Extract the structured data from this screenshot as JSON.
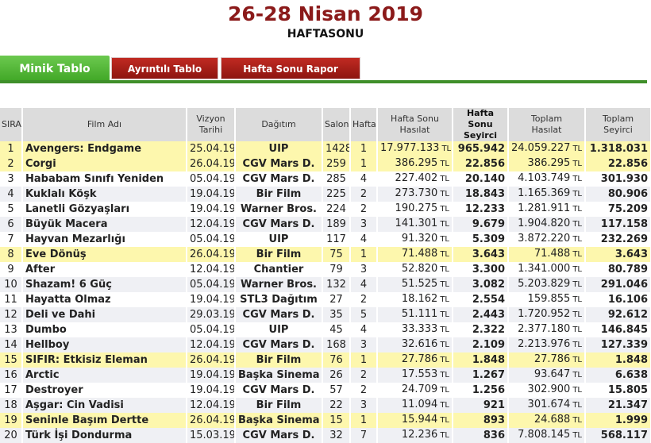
{
  "header": {
    "title": "26-28 Nisan 2019",
    "subtitle": "HAFTASONU"
  },
  "tabs": [
    {
      "label": "Minik Tablo",
      "active": true
    },
    {
      "label": "Ayrıntılı Tablo",
      "active": false
    },
    {
      "label": "Hafta Sonu Rapor",
      "active": false
    }
  ],
  "colors": {
    "title": "#8b1a1a",
    "tab_active": "#4fb535",
    "tab_inactive": "#a81d17",
    "tab_bar": "#3f8f2a",
    "link_text": "#1f2a8a",
    "new_release_row": "#fdf7ad",
    "alt_row": "#eff0f4",
    "header_bg": "#dcdcdc"
  },
  "currency_suffix": "TL",
  "table": {
    "columns": [
      {
        "line1": "SIRA",
        "line2": ""
      },
      {
        "line1": "Film Adı",
        "line2": ""
      },
      {
        "line1": "Vizyon",
        "line2": "Tarihi"
      },
      {
        "line1": "Dağıtım",
        "line2": ""
      },
      {
        "line1": "Salon",
        "line2": ""
      },
      {
        "line1": "Hafta",
        "line2": ""
      },
      {
        "line1": "Hafta Sonu",
        "line2": "Hasılat"
      },
      {
        "line1": "Hafta Sonu",
        "line2": "Seyirci"
      },
      {
        "line1": "Toplam",
        "line2": "Hasılat"
      },
      {
        "line1": "Toplam",
        "line2": "Seyirci"
      }
    ],
    "rows": [
      {
        "rank": "1",
        "film": "Avengers: Endgame",
        "release": "25.04.19",
        "distributor": "UIP",
        "screens": "1428",
        "week": "1",
        "weekend_gross": "17.977.133",
        "weekend_admissions": "965.942",
        "total_gross": "24.059.227",
        "total_admissions": "1.318.031",
        "new": true
      },
      {
        "rank": "2",
        "film": "Corgi",
        "release": "26.04.19",
        "distributor": "CGV Mars D.",
        "screens": "259",
        "week": "1",
        "weekend_gross": "386.295",
        "weekend_admissions": "22.856",
        "total_gross": "386.295",
        "total_admissions": "22.856",
        "new": true
      },
      {
        "rank": "3",
        "film": "Hababam Sınıfı Yeniden",
        "release": "05.04.19",
        "distributor": "CGV Mars D.",
        "screens": "285",
        "week": "4",
        "weekend_gross": "227.402",
        "weekend_admissions": "20.140",
        "total_gross": "4.103.749",
        "total_admissions": "301.930",
        "new": false
      },
      {
        "rank": "4",
        "film": "Kuklalı Köşk",
        "release": "19.04.19",
        "distributor": "Bir Film",
        "screens": "225",
        "week": "2",
        "weekend_gross": "273.730",
        "weekend_admissions": "18.843",
        "total_gross": "1.165.369",
        "total_admissions": "80.906",
        "new": false
      },
      {
        "rank": "5",
        "film": "Lanetli Gözyaşları",
        "release": "19.04.19",
        "distributor": "Warner Bros.",
        "screens": "224",
        "week": "2",
        "weekend_gross": "190.275",
        "weekend_admissions": "12.233",
        "total_gross": "1.281.911",
        "total_admissions": "75.209",
        "new": false
      },
      {
        "rank": "6",
        "film": "Büyük Macera",
        "release": "12.04.19",
        "distributor": "CGV Mars D.",
        "screens": "189",
        "week": "3",
        "weekend_gross": "141.301",
        "weekend_admissions": "9.679",
        "total_gross": "1.904.820",
        "total_admissions": "117.158",
        "new": false
      },
      {
        "rank": "7",
        "film": "Hayvan Mezarlığı",
        "release": "05.04.19",
        "distributor": "UIP",
        "screens": "117",
        "week": "4",
        "weekend_gross": "91.320",
        "weekend_admissions": "5.309",
        "total_gross": "3.872.220",
        "total_admissions": "232.269",
        "new": false
      },
      {
        "rank": "8",
        "film": "Eve Dönüş",
        "release": "26.04.19",
        "distributor": "Bir Film",
        "screens": "75",
        "week": "1",
        "weekend_gross": "71.488",
        "weekend_admissions": "3.643",
        "total_gross": "71.488",
        "total_admissions": "3.643",
        "new": true
      },
      {
        "rank": "9",
        "film": "After",
        "release": "12.04.19",
        "distributor": "Chantier",
        "screens": "79",
        "week": "3",
        "weekend_gross": "52.820",
        "weekend_admissions": "3.300",
        "total_gross": "1.341.000",
        "total_admissions": "80.789",
        "new": false
      },
      {
        "rank": "10",
        "film": "Shazam! 6 Güç",
        "release": "05.04.19",
        "distributor": "Warner Bros.",
        "screens": "132",
        "week": "4",
        "weekend_gross": "51.525",
        "weekend_admissions": "3.082",
        "total_gross": "5.203.829",
        "total_admissions": "291.046",
        "new": false
      },
      {
        "rank": "11",
        "film": "Hayatta Olmaz",
        "release": "19.04.19",
        "distributor": "STL3 Dağıtım",
        "screens": "27",
        "week": "2",
        "weekend_gross": "18.162",
        "weekend_admissions": "2.554",
        "total_gross": "159.855",
        "total_admissions": "16.106",
        "new": false
      },
      {
        "rank": "12",
        "film": "Deli ve Dahi",
        "release": "29.03.19",
        "distributor": "CGV Mars D.",
        "screens": "35",
        "week": "5",
        "weekend_gross": "51.111",
        "weekend_admissions": "2.443",
        "total_gross": "1.720.952",
        "total_admissions": "92.612",
        "new": false
      },
      {
        "rank": "13",
        "film": "Dumbo",
        "release": "05.04.19",
        "distributor": "UIP",
        "screens": "45",
        "week": "4",
        "weekend_gross": "33.333",
        "weekend_admissions": "2.322",
        "total_gross": "2.377.180",
        "total_admissions": "146.845",
        "new": false
      },
      {
        "rank": "14",
        "film": "Hellboy",
        "release": "12.04.19",
        "distributor": "CGV Mars D.",
        "screens": "168",
        "week": "3",
        "weekend_gross": "32.616",
        "weekend_admissions": "2.109",
        "total_gross": "2.213.976",
        "total_admissions": "127.339",
        "new": false
      },
      {
        "rank": "15",
        "film": "SIFIR: Etkisiz Eleman",
        "release": "26.04.19",
        "distributor": "Bir Film",
        "screens": "76",
        "week": "1",
        "weekend_gross": "27.786",
        "weekend_admissions": "1.848",
        "total_gross": "27.786",
        "total_admissions": "1.848",
        "new": true
      },
      {
        "rank": "16",
        "film": "Arctic",
        "release": "19.04.19",
        "distributor": "Başka Sinema",
        "screens": "26",
        "week": "2",
        "weekend_gross": "17.553",
        "weekend_admissions": "1.267",
        "total_gross": "93.647",
        "total_admissions": "6.638",
        "new": false
      },
      {
        "rank": "17",
        "film": "Destroyer",
        "release": "19.04.19",
        "distributor": "CGV Mars D.",
        "screens": "57",
        "week": "2",
        "weekend_gross": "24.709",
        "weekend_admissions": "1.256",
        "total_gross": "302.900",
        "total_admissions": "15.805",
        "new": false
      },
      {
        "rank": "18",
        "film": "Aşgar: Cin Vadisi",
        "release": "12.04.19",
        "distributor": "Bir Film",
        "screens": "22",
        "week": "3",
        "weekend_gross": "11.094",
        "weekend_admissions": "921",
        "total_gross": "301.674",
        "total_admissions": "21.347",
        "new": false
      },
      {
        "rank": "19",
        "film": "Seninle Başım Dertte",
        "release": "26.04.19",
        "distributor": "Başka Sinema",
        "screens": "15",
        "week": "1",
        "weekend_gross": "15.944",
        "weekend_admissions": "893",
        "total_gross": "24.688",
        "total_admissions": "1.999",
        "new": true
      },
      {
        "rank": "20",
        "film": "Türk İşi Dondurma",
        "release": "15.03.19",
        "distributor": "CGV Mars D.",
        "screens": "32",
        "week": "7",
        "weekend_gross": "12.236",
        "weekend_admissions": "836",
        "total_gross": "7.808.145",
        "total_admissions": "568.117",
        "new": false
      }
    ]
  }
}
